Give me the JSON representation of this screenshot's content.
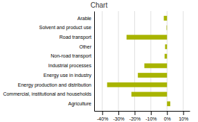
{
  "chart_data": {
    "type": "bar",
    "orientation": "horizontal",
    "title": "Chart",
    "categories": [
      "Arable",
      "Solvent and product use",
      "Road transport",
      "Other",
      "Non-road transport",
      "Industrial processes",
      "Energy use in industry",
      "Energy production and distribution",
      "Commercial, institutional and households",
      "Agriculture"
    ],
    "values": [
      -2.0,
      -0.3,
      -25.0,
      -1.2,
      -1.5,
      -14.0,
      -18.0,
      -37.0,
      -22.0,
      2.0
    ],
    "color": "#a8b400",
    "xlim": [
      -45,
      14
    ],
    "xticks": [
      {
        "value": -40,
        "label": "-40%"
      },
      {
        "value": -30,
        "label": "-30%"
      },
      {
        "value": -20,
        "label": "-20%"
      },
      {
        "value": -10,
        "label": "-10%"
      },
      {
        "value": 0,
        "label": "0%"
      },
      {
        "value": 10,
        "label": "10%"
      }
    ],
    "grid": true
  }
}
